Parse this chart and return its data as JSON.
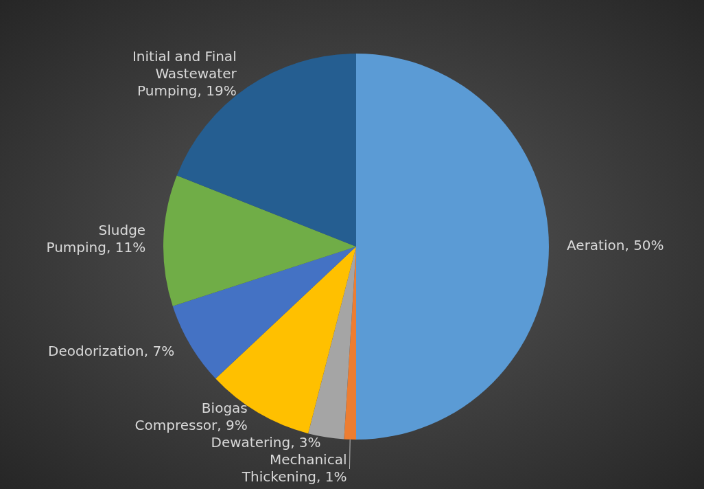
{
  "chart_data": {
    "type": "pie",
    "categories": [
      "Aeration",
      "Mechanical Thickening",
      "Dewatering",
      "Biogas Compressor",
      "Deodorization",
      "Sludge Pumping",
      "Initial and Final Wastewater Pumping"
    ],
    "values": [
      50,
      1,
      3,
      9,
      7,
      11,
      19
    ],
    "value_labels": [
      "50%",
      "1%",
      "3%",
      "9%",
      "7%",
      "11%",
      "19%"
    ],
    "colors": [
      "#5b9bd5",
      "#ed7d31",
      "#a5a5a5",
      "#ffc000",
      "#4472c4",
      "#70ad47",
      "#255e91"
    ],
    "legend": false
  }
}
